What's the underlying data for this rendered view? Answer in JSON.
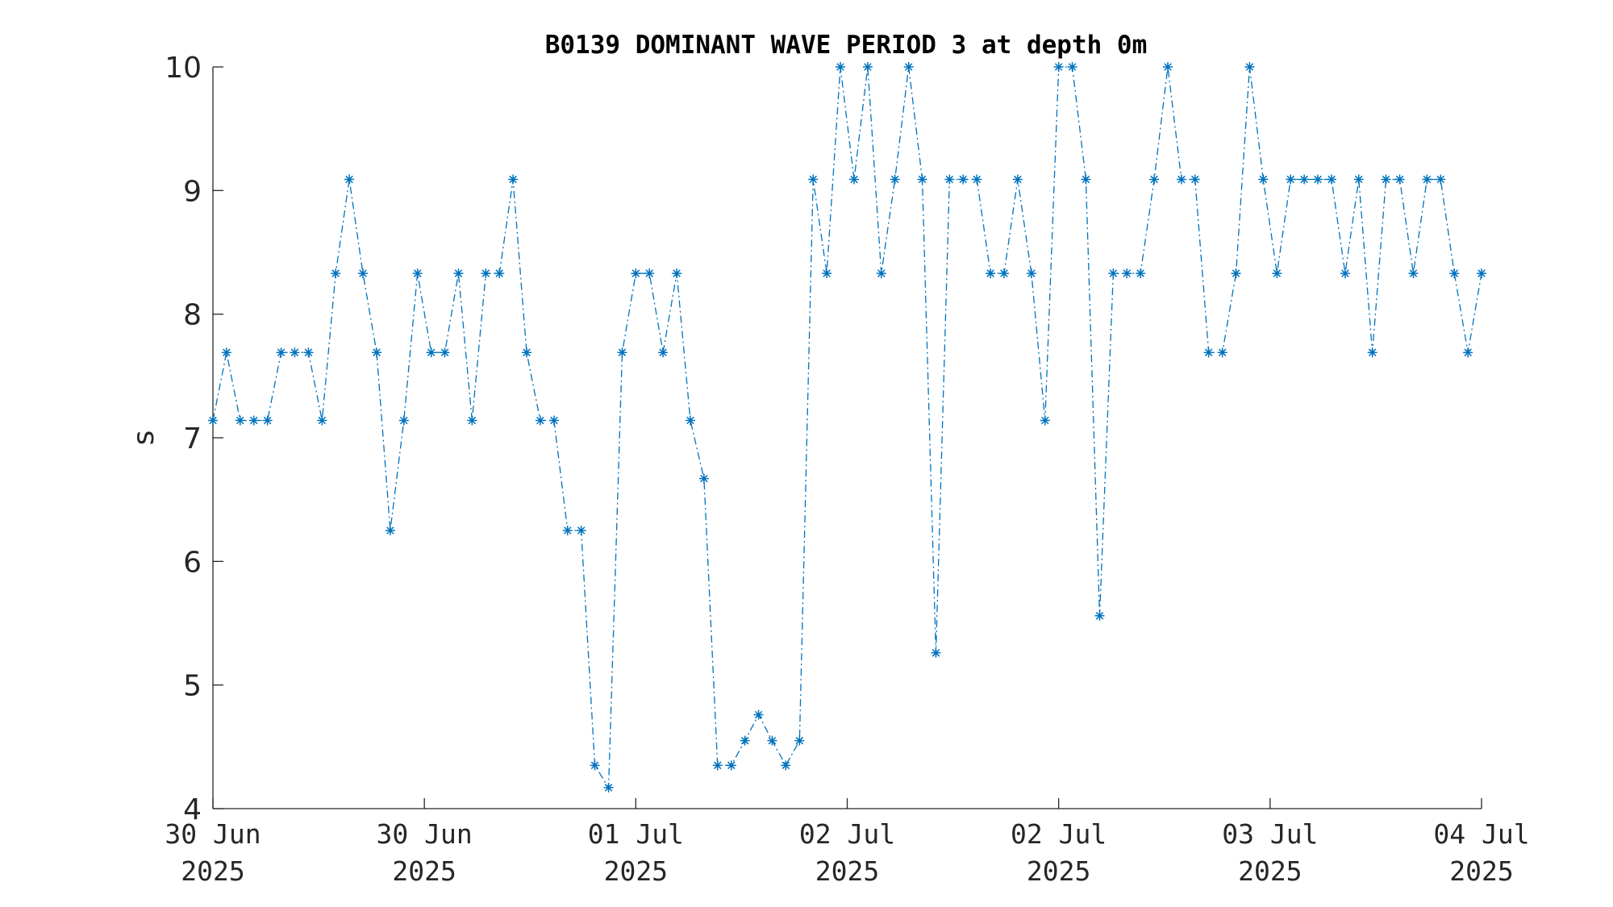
{
  "chart_data": {
    "type": "line",
    "title": "B0139 DOMINANT WAVE PERIOD 3 at depth 0m",
    "ylabel": "s",
    "xlim": [
      0,
      96
    ],
    "xticks": [
      {
        "value": 0,
        "label": [
          "30 Jun",
          "2025"
        ]
      },
      {
        "value": 16,
        "label": [
          "30 Jun",
          "2025"
        ]
      },
      {
        "value": 32,
        "label": [
          "01 Jul",
          "2025"
        ]
      },
      {
        "value": 48,
        "label": [
          "02 Jul",
          "2025"
        ]
      },
      {
        "value": 64,
        "label": [
          "02 Jul",
          "2025"
        ]
      },
      {
        "value": 80,
        "label": [
          "03 Jul",
          "2025"
        ]
      },
      {
        "value": 96,
        "label": [
          "04 Jul",
          "2025"
        ]
      }
    ],
    "ylim": [
      4,
      10
    ],
    "yticks": [
      4,
      5,
      6,
      7,
      8,
      9,
      10
    ],
    "grid": false,
    "series": [
      {
        "color": "#0072bd",
        "x": [
          0,
          1.03,
          2.06,
          3.1,
          4.13,
          5.16,
          6.19,
          7.23,
          8.26,
          9.29,
          10.32,
          11.35,
          12.39,
          13.42,
          14.45,
          15.48,
          16.52,
          17.55,
          18.58,
          19.61,
          20.65,
          21.68,
          22.71,
          23.74,
          24.77,
          25.81,
          26.84,
          27.87,
          28.9,
          29.94,
          30.97,
          32,
          33.03,
          34.06,
          35.1,
          36.13,
          37.16,
          38.19,
          39.23,
          40.26,
          41.29,
          42.32,
          43.35,
          44.39,
          45.42,
          46.45,
          47.48,
          48.52,
          49.55,
          50.58,
          51.61,
          52.65,
          53.68,
          54.71,
          55.74,
          56.77,
          57.81,
          58.84,
          59.87,
          60.9,
          61.94,
          62.97,
          64,
          65.03,
          66.06,
          67.1,
          68.13,
          69.16,
          70.19,
          71.23,
          72.26,
          73.29,
          74.32,
          75.35,
          76.39,
          77.42,
          78.45,
          79.48,
          80.52,
          81.55,
          82.58,
          83.61,
          84.65,
          85.68,
          86.71,
          87.74,
          88.77,
          89.81,
          90.84,
          91.87,
          92.9,
          93.94,
          94.97,
          96
        ],
        "values": [
          7.14,
          7.69,
          7.14,
          7.14,
          7.14,
          7.69,
          7.69,
          7.69,
          7.14,
          8.33,
          9.09,
          8.33,
          7.69,
          6.25,
          7.14,
          8.33,
          7.69,
          7.69,
          8.33,
          7.14,
          8.33,
          8.33,
          9.09,
          7.69,
          7.14,
          7.14,
          6.25,
          6.25,
          4.35,
          4.17,
          7.69,
          8.33,
          8.33,
          7.69,
          8.33,
          7.14,
          6.67,
          4.35,
          4.35,
          4.55,
          4.76,
          4.55,
          4.35,
          4.55,
          9.09,
          8.33,
          10,
          9.09,
          10,
          8.33,
          9.09,
          10,
          9.09,
          5.26,
          9.09,
          9.09,
          9.09,
          8.33,
          8.33,
          9.09,
          8.33,
          7.14,
          10,
          10,
          9.09,
          5.56,
          8.33,
          8.33,
          8.33,
          9.09,
          10,
          9.09,
          9.09,
          7.69,
          7.69,
          8.33,
          10,
          9.09,
          8.33,
          9.09,
          9.09,
          9.09,
          9.09,
          8.33,
          9.09,
          7.69,
          9.09,
          9.09,
          8.33,
          9.09,
          9.09,
          8.33,
          7.69,
          8.33
        ]
      }
    ]
  }
}
